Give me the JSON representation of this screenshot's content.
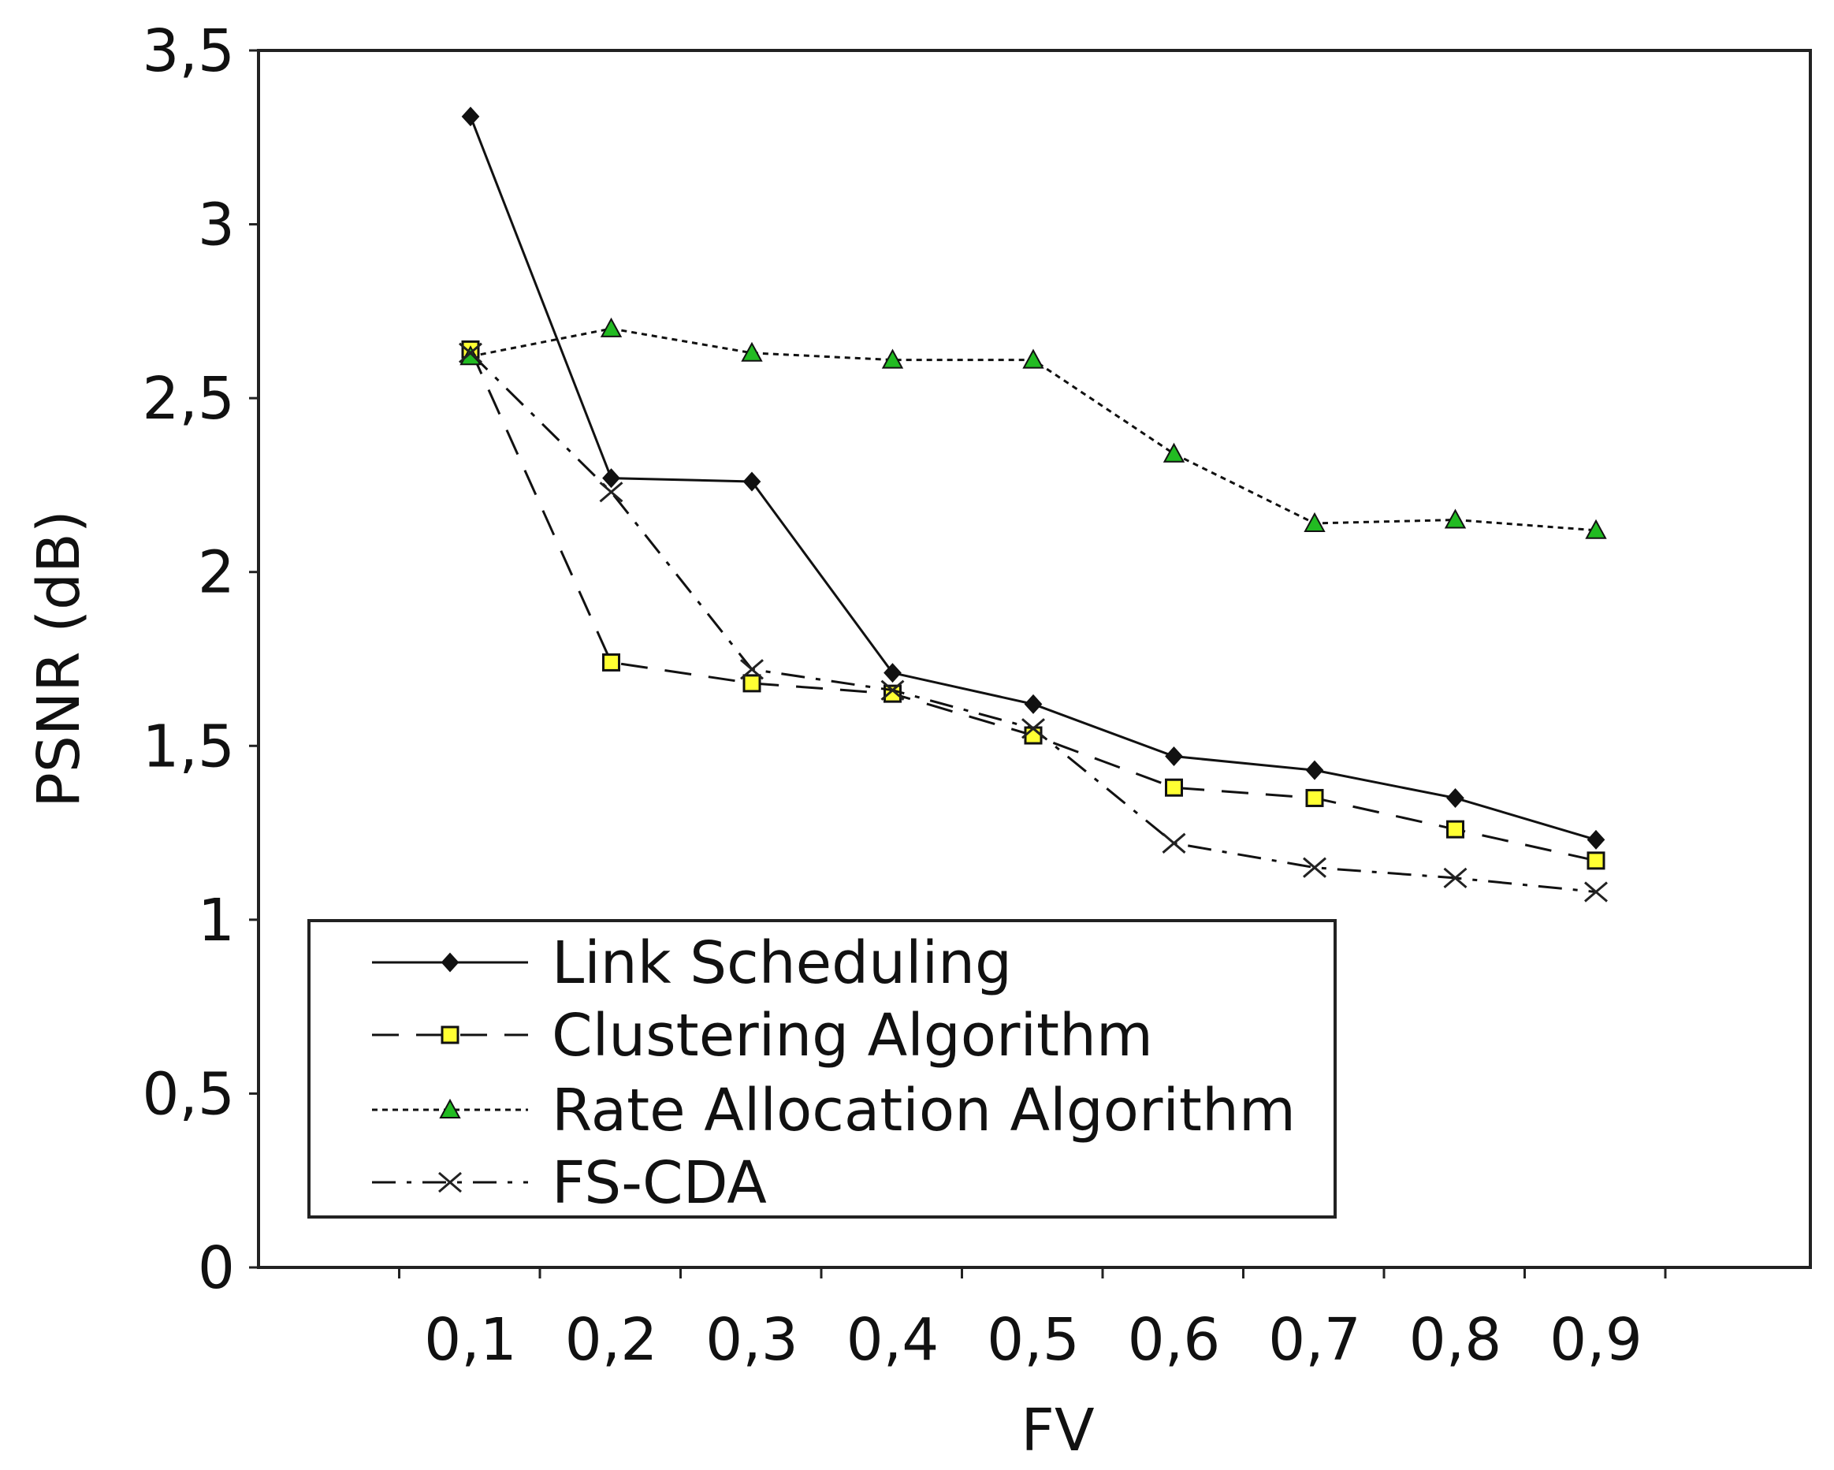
{
  "chart_data": {
    "type": "line",
    "title": "",
    "xlabel": "FV",
    "ylabel": "PSNR (dB)",
    "ylim": [
      0,
      3.5
    ],
    "yticks": [
      "0",
      "0,5",
      "1",
      "1,5",
      "2",
      "2,5",
      "3",
      "3,5"
    ],
    "categories": [
      "0,1",
      "0,2",
      "0,3",
      "0,4",
      "0,5",
      "0,6",
      "0,7",
      "0,8",
      "0,9"
    ],
    "grid": false,
    "legend_position": "bottom-left",
    "series": [
      {
        "name": "Link Scheduling",
        "style": "solid",
        "marker": "diamond",
        "color": "#111111",
        "marker_fill": "#111111",
        "values": [
          3.31,
          2.27,
          2.26,
          1.71,
          1.62,
          1.47,
          1.43,
          1.35,
          1.23
        ]
      },
      {
        "name": "Clustering Algorithm",
        "style": "dashed",
        "marker": "square",
        "color": "#111111",
        "marker_fill": "#ffff33",
        "values": [
          2.64,
          1.74,
          1.68,
          1.65,
          1.53,
          1.38,
          1.35,
          1.26,
          1.17
        ]
      },
      {
        "name": "Rate Allocation Algorithm",
        "style": "dotted",
        "marker": "triangle",
        "color": "#111111",
        "marker_fill": "#22bb22",
        "values": [
          2.62,
          2.7,
          2.63,
          2.61,
          2.61,
          2.34,
          2.14,
          2.15,
          2.12
        ]
      },
      {
        "name": "FS-CDA",
        "style": "dashdot",
        "marker": "x",
        "color": "#111111",
        "marker_fill": "#111111",
        "values": [
          2.63,
          2.23,
          1.72,
          1.66,
          1.55,
          1.22,
          1.15,
          1.12,
          1.08
        ]
      }
    ]
  }
}
